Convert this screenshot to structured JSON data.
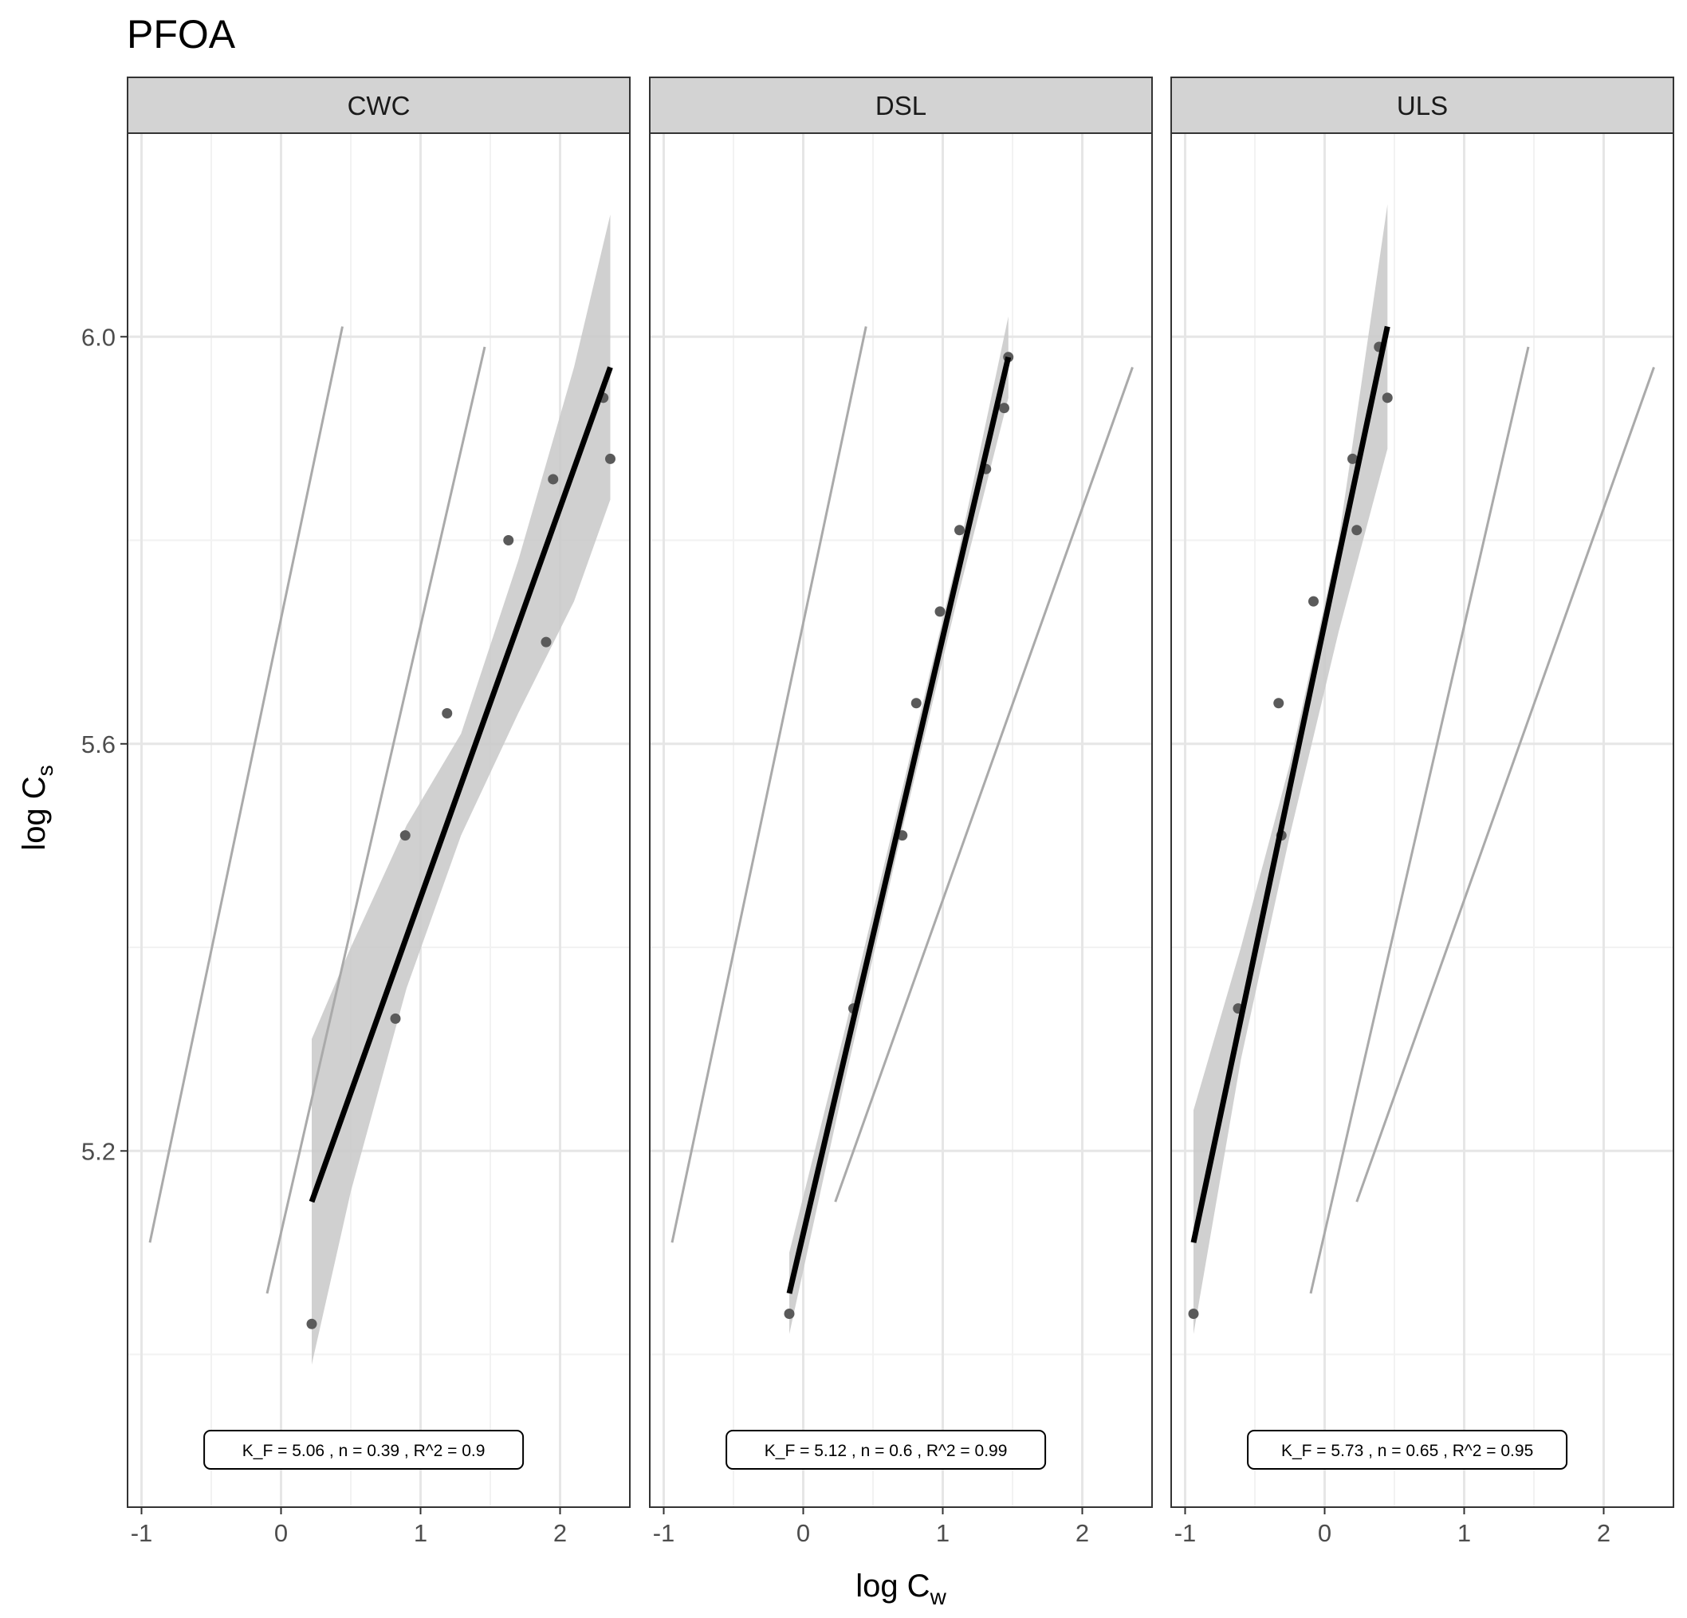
{
  "chart_data": {
    "type": "scatter",
    "title": "PFOA",
    "xlabel": {
      "main": "log C",
      "sub": "w"
    },
    "ylabel": {
      "main": "log C",
      "sub": "s"
    },
    "xlim": [
      -1.1,
      2.5
    ],
    "ylim": [
      4.85,
      6.2
    ],
    "x_ticks": [
      -1,
      0,
      1,
      2
    ],
    "x_tick_labels": [
      "-1",
      "0",
      "1",
      "2"
    ],
    "y_ticks": [
      5.2,
      5.6,
      6.0
    ],
    "y_tick_labels": [
      "5.2",
      "5.6",
      "6.0"
    ],
    "grid": true,
    "panels": [
      {
        "name": "CWC",
        "points": [
          {
            "x": 0.22,
            "y": 5.03
          },
          {
            "x": 0.82,
            "y": 5.33
          },
          {
            "x": 0.89,
            "y": 5.51
          },
          {
            "x": 1.19,
            "y": 5.63
          },
          {
            "x": 1.63,
            "y": 5.8
          },
          {
            "x": 1.9,
            "y": 5.7
          },
          {
            "x": 1.95,
            "y": 5.86
          },
          {
            "x": 2.31,
            "y": 5.94
          },
          {
            "x": 2.36,
            "y": 5.88
          }
        ],
        "fit": {
          "x0": 0.22,
          "y0": 5.15,
          "x1": 2.36,
          "y1": 5.97
        },
        "ci_band": [
          {
            "x": 0.22,
            "lo": 4.99,
            "hi": 5.31
          },
          {
            "x": 0.5,
            "lo": 5.16,
            "hi": 5.4
          },
          {
            "x": 0.9,
            "lo": 5.36,
            "hi": 5.52
          },
          {
            "x": 1.29,
            "lo": 5.51,
            "hi": 5.61
          },
          {
            "x": 1.7,
            "lo": 5.63,
            "hi": 5.78
          },
          {
            "x": 2.1,
            "lo": 5.74,
            "hi": 5.97
          },
          {
            "x": 2.36,
            "lo": 5.84,
            "hi": 6.12
          }
        ],
        "ref_lines": [
          {
            "x0": -0.94,
            "y0": 5.11,
            "x1": 0.44,
            "y1": 6.01
          },
          {
            "x0": -0.1,
            "y0": 5.06,
            "x1": 1.46,
            "y1": 5.99
          }
        ],
        "annotation": {
          "kf": "K_F = 5.06 ,",
          "n": "n = 0.39 ,",
          "r2": "R^2 = 0.9"
        }
      },
      {
        "name": "DSL",
        "points": [
          {
            "x": -0.1,
            "y": 5.04
          },
          {
            "x": 0.36,
            "y": 5.34
          },
          {
            "x": 0.71,
            "y": 5.51
          },
          {
            "x": 0.81,
            "y": 5.64
          },
          {
            "x": 0.98,
            "y": 5.73
          },
          {
            "x": 1.12,
            "y": 5.81
          },
          {
            "x": 1.31,
            "y": 5.87
          },
          {
            "x": 1.44,
            "y": 5.93
          },
          {
            "x": 1.47,
            "y": 5.98
          }
        ],
        "fit": {
          "x0": -0.1,
          "y0": 5.06,
          "x1": 1.47,
          "y1": 5.98
        },
        "ci_band": [
          {
            "x": -0.1,
            "lo": 5.02,
            "hi": 5.1
          },
          {
            "x": 0.3,
            "lo": 5.27,
            "hi": 5.32
          },
          {
            "x": 0.7,
            "lo": 5.51,
            "hi": 5.55
          },
          {
            "x": 1.1,
            "lo": 5.74,
            "hi": 5.78
          },
          {
            "x": 1.47,
            "lo": 5.94,
            "hi": 6.02
          }
        ],
        "ref_lines": [
          {
            "x0": -0.94,
            "y0": 5.11,
            "x1": 0.45,
            "y1": 6.01
          },
          {
            "x0": 0.23,
            "y0": 5.15,
            "x1": 2.36,
            "y1": 5.97
          }
        ],
        "annotation": {
          "kf": "K_F = 5.12 ,",
          "n": "n = 0.6 ,",
          "r2": "R^2 = 0.99"
        }
      },
      {
        "name": "ULS",
        "points": [
          {
            "x": -0.94,
            "y": 5.04
          },
          {
            "x": -0.62,
            "y": 5.34
          },
          {
            "x": -0.33,
            "y": 5.64
          },
          {
            "x": -0.31,
            "y": 5.51
          },
          {
            "x": -0.08,
            "y": 5.74
          },
          {
            "x": 0.2,
            "y": 5.88
          },
          {
            "x": 0.23,
            "y": 5.81
          },
          {
            "x": 0.39,
            "y": 5.99
          },
          {
            "x": 0.45,
            "y": 5.94
          }
        ],
        "fit": {
          "x0": -0.94,
          "y0": 5.11,
          "x1": 0.45,
          "y1": 6.01
        },
        "ci_band": [
          {
            "x": -0.94,
            "lo": 5.02,
            "hi": 5.24
          },
          {
            "x": -0.6,
            "lo": 5.29,
            "hi": 5.4
          },
          {
            "x": -0.25,
            "lo": 5.51,
            "hi": 5.58
          },
          {
            "x": 0.1,
            "lo": 5.71,
            "hi": 5.8
          },
          {
            "x": 0.45,
            "lo": 5.89,
            "hi": 6.13
          }
        ],
        "ref_lines": [
          {
            "x0": -0.1,
            "y0": 5.06,
            "x1": 1.46,
            "y1": 5.99
          },
          {
            "x0": 0.23,
            "y0": 5.15,
            "x1": 2.36,
            "y1": 5.97
          }
        ],
        "annotation": {
          "kf": "K_F = 5.73 ,",
          "n": "n = 0.65 ,",
          "r2": "R^2 = 0.95"
        }
      }
    ],
    "colors": {
      "strip_bg": "#d3d3d3",
      "panel_border": "#333333",
      "grid_major": "#e6e6e6",
      "grid_minor": "#f2f2f2",
      "points": "#5a5a5a",
      "fit_line": "#000000",
      "ci_band": "#c8c8c8",
      "ref_line": "#aaaaaa"
    }
  }
}
